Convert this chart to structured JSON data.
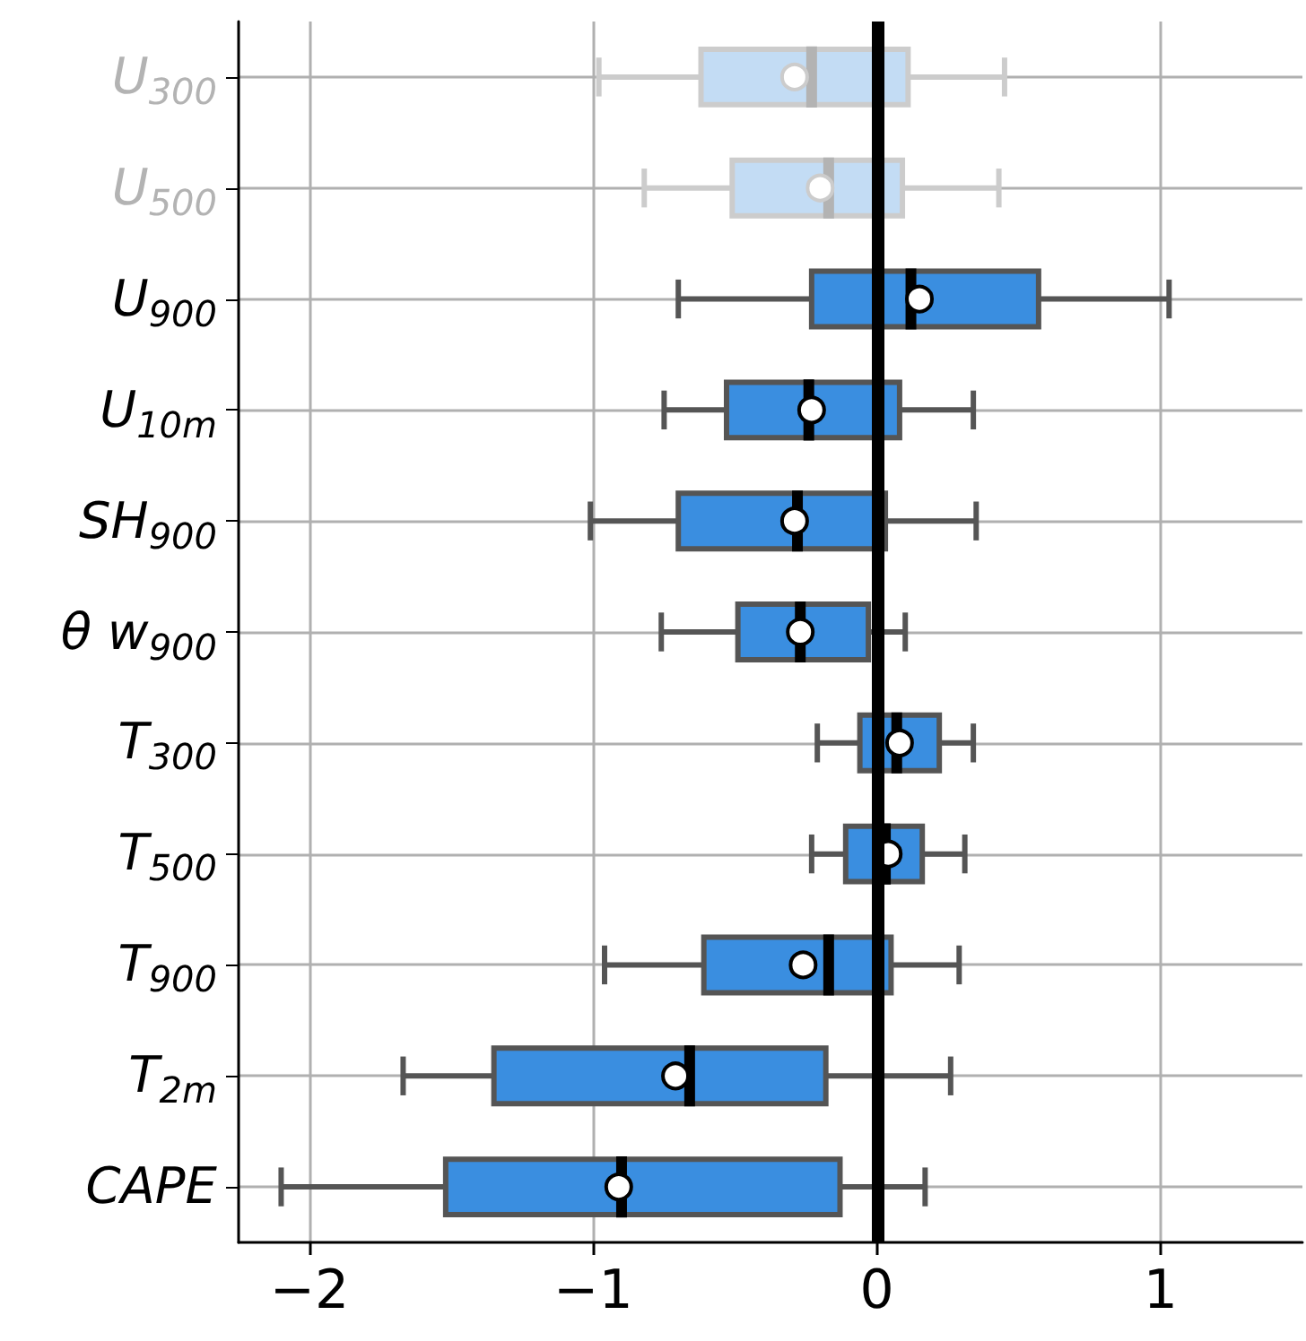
{
  "chart_data": {
    "type": "box",
    "orientation": "horizontal",
    "categories": [
      "U$_{300}$",
      "U$_{500}$",
      "U$_{900}$",
      "U$_{10m}$",
      "SH$_{900}$",
      "θ w$_{900}$",
      "T$_{300}$",
      "T$_{500}$",
      "T$_{900}$",
      "T$_{2m}$",
      "CAPE"
    ],
    "series": [
      {
        "color": "#c3dcf4",
        "boxes": [
          {
            "low": -0.98,
            "q1": -0.62,
            "median": -0.23,
            "q3": 0.11,
            "high": 0.45,
            "mean": -0.29
          },
          {
            "low": -0.82,
            "q1": -0.51,
            "median": -0.17,
            "q3": 0.09,
            "high": 0.43,
            "mean": -0.2
          },
          null,
          null,
          null,
          null,
          null,
          null,
          null,
          null,
          null
        ]
      },
      {
        "color": "#3a8ee0",
        "boxes": [
          null,
          null,
          {
            "low": -0.7,
            "q1": -0.23,
            "median": 0.12,
            "q3": 0.57,
            "high": 1.03,
            "mean": 0.15
          },
          {
            "low": -0.75,
            "q1": -0.53,
            "median": -0.24,
            "q3": 0.08,
            "high": 0.34,
            "mean": -0.23
          },
          {
            "low": -1.01,
            "q1": -0.7,
            "median": -0.28,
            "q3": 0.03,
            "high": 0.35,
            "mean": -0.29
          },
          {
            "low": -0.76,
            "q1": -0.49,
            "median": -0.27,
            "q3": -0.03,
            "high": 0.1,
            "mean": -0.27
          },
          {
            "low": -0.21,
            "q1": -0.06,
            "median": 0.07,
            "q3": 0.22,
            "high": 0.34,
            "mean": 0.08
          },
          {
            "low": -0.23,
            "q1": -0.11,
            "median": 0.03,
            "q3": 0.16,
            "high": 0.31,
            "mean": 0.04
          },
          {
            "low": -0.96,
            "q1": -0.61,
            "median": -0.17,
            "q3": 0.05,
            "high": 0.29,
            "mean": -0.26
          },
          {
            "low": -1.67,
            "q1": -1.35,
            "median": -0.66,
            "q3": -0.18,
            "high": 0.26,
            "mean": -0.71
          },
          {
            "low": -2.1,
            "q1": -1.52,
            "median": -0.9,
            "q3": -0.13,
            "high": 0.17,
            "mean": -0.91
          }
        ]
      }
    ],
    "xlim": [
      -2.25,
      1.5
    ],
    "xticks": [
      {
        "value": -2,
        "label": "−2"
      },
      {
        "value": -1,
        "label": "−1"
      },
      0,
      1
    ],
    "ref_lines": [
      {
        "axis": "x",
        "value": 0,
        "color": "#000000"
      }
    ],
    "grid": true,
    "marker": "circle"
  }
}
